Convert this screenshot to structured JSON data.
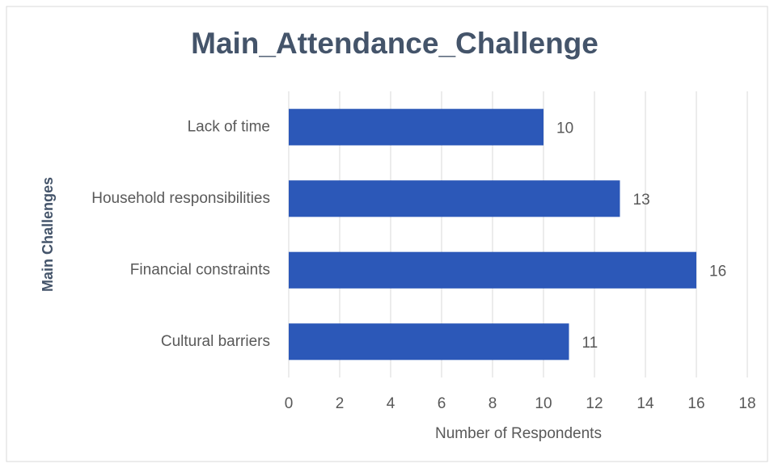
{
  "chart_data": {
    "type": "barh",
    "title": "Main_Attendance_Challenge",
    "x_label": "Number of Respondents",
    "y_label": "Main Challenges",
    "categories": [
      "Lack of time",
      "Household responsibilities",
      "Financial constraints",
      "Cultural barriers"
    ],
    "values": [
      10,
      13,
      16,
      11
    ],
    "color": "#2c58b8",
    "xlim": [
      0,
      18
    ],
    "xticks": [
      0,
      2,
      4,
      6,
      8,
      10,
      12,
      14,
      16,
      18
    ],
    "grid": true
  }
}
